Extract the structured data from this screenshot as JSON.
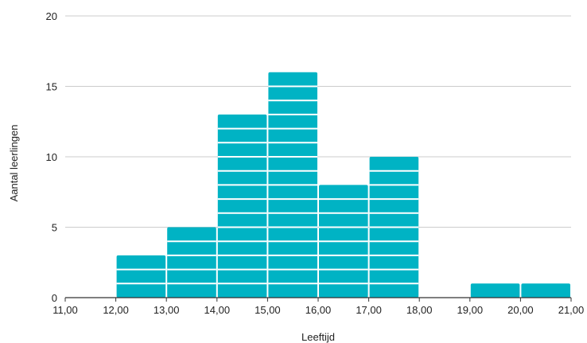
{
  "chart_data": {
    "type": "bar",
    "subtype": "histogram",
    "xlabel": "Leeftijd",
    "ylabel": "Aantal leerlingen",
    "xlim": [
      11,
      21
    ],
    "ylim": [
      0,
      20
    ],
    "x_tick_values": [
      11,
      12,
      13,
      14,
      15,
      16,
      17,
      18,
      19,
      20,
      21
    ],
    "x_tick_labels": [
      "11,00",
      "12,00",
      "13,00",
      "14,00",
      "15,00",
      "16,00",
      "17,00",
      "18,00",
      "19,00",
      "20,00",
      "21,00"
    ],
    "y_tick_values": [
      0,
      5,
      10,
      15,
      20
    ],
    "y_tick_labels": [
      "0",
      "5",
      "10",
      "15",
      "20"
    ],
    "bins": [
      {
        "start": 12,
        "end": 13,
        "count": 3
      },
      {
        "start": 13,
        "end": 14,
        "count": 5
      },
      {
        "start": 14,
        "end": 15,
        "count": 13
      },
      {
        "start": 15,
        "end": 16,
        "count": 16
      },
      {
        "start": 16,
        "end": 17,
        "count": 8
      },
      {
        "start": 17,
        "end": 18,
        "count": 10
      },
      {
        "start": 19,
        "end": 20,
        "count": 1
      },
      {
        "start": 20,
        "end": 21,
        "count": 1
      }
    ],
    "bar_color": "#00b3c4",
    "grid": true,
    "grid_color": "#cccccc",
    "axis_color": "#333333"
  }
}
